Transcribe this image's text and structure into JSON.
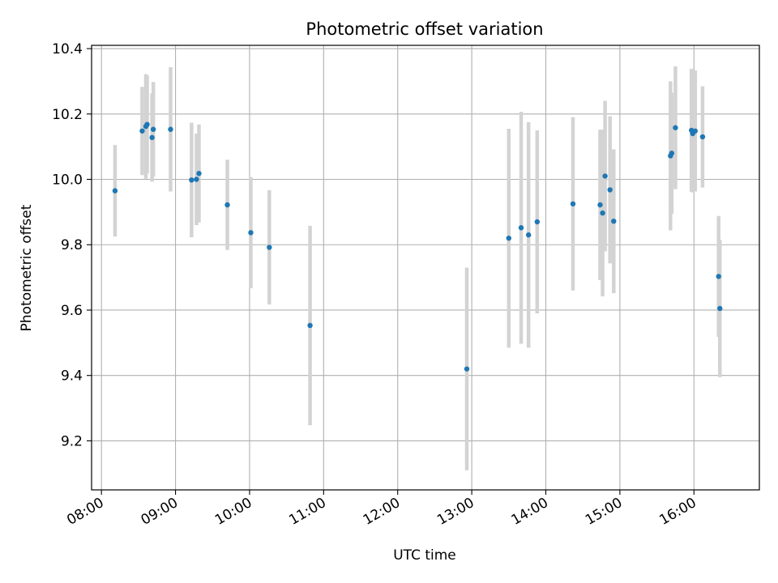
{
  "chart_data": {
    "type": "scatter",
    "title": "Photometric offset variation",
    "xlabel": "UTC time",
    "ylabel": "Photometric offset",
    "x_ticks": [
      "08:00",
      "09:00",
      "10:00",
      "11:00",
      "12:00",
      "13:00",
      "14:00",
      "15:00",
      "16:00"
    ],
    "y_ticks": [
      "9.2",
      "9.4",
      "9.6",
      "9.8",
      "10.0",
      "10.2",
      "10.4"
    ],
    "xlim": [
      "07:52",
      "16:53"
    ],
    "ylim": [
      9.05,
      10.41
    ],
    "grid": true,
    "legend": "none",
    "marker_color": "#1f77b4",
    "errorbar_color": "#d3d3d3",
    "series": [
      {
        "points": [
          {
            "x": "08:11",
            "y": 9.965,
            "err": 0.14
          },
          {
            "x": "08:33",
            "y": 10.148,
            "err": 0.135
          },
          {
            "x": "08:36",
            "y": 10.162,
            "err": 0.16
          },
          {
            "x": "08:37",
            "y": 10.168,
            "err": 0.15
          },
          {
            "x": "08:41",
            "y": 10.128,
            "err": 0.135
          },
          {
            "x": "08:42",
            "y": 10.153,
            "err": 0.145
          },
          {
            "x": "08:56",
            "y": 10.153,
            "err": 0.19
          },
          {
            "x": "09:13",
            "y": 9.998,
            "err": 0.175
          },
          {
            "x": "09:17",
            "y": 10.0,
            "err": 0.14
          },
          {
            "x": "09:19",
            "y": 10.018,
            "err": 0.15
          },
          {
            "x": "09:42",
            "y": 9.922,
            "err": 0.138
          },
          {
            "x": "10:01",
            "y": 9.837,
            "err": 0.17
          },
          {
            "x": "10:16",
            "y": 9.792,
            "err": 0.175
          },
          {
            "x": "10:49",
            "y": 9.553,
            "err": 0.305
          },
          {
            "x": "12:56",
            "y": 9.42,
            "err": 0.31
          },
          {
            "x": "13:30",
            "y": 9.82,
            "err": 0.335
          },
          {
            "x": "13:40",
            "y": 9.852,
            "err": 0.355
          },
          {
            "x": "13:46",
            "y": 9.83,
            "err": 0.345
          },
          {
            "x": "13:53",
            "y": 9.87,
            "err": 0.28
          },
          {
            "x": "14:22",
            "y": 9.925,
            "err": 0.265
          },
          {
            "x": "14:44",
            "y": 9.922,
            "err": 0.23
          },
          {
            "x": "14:46",
            "y": 9.897,
            "err": 0.255
          },
          {
            "x": "14:48",
            "y": 10.01,
            "err": 0.23
          },
          {
            "x": "14:52",
            "y": 9.968,
            "err": 0.225
          },
          {
            "x": "14:55",
            "y": 9.872,
            "err": 0.22
          },
          {
            "x": "15:41",
            "y": 10.072,
            "err": 0.228
          },
          {
            "x": "15:42",
            "y": 10.08,
            "err": 0.185
          },
          {
            "x": "15:45",
            "y": 10.158,
            "err": 0.188
          },
          {
            "x": "15:58",
            "y": 10.15,
            "err": 0.188
          },
          {
            "x": "15:59",
            "y": 10.14,
            "err": 0.18
          },
          {
            "x": "16:01",
            "y": 10.148,
            "err": 0.185
          },
          {
            "x": "16:07",
            "y": 10.13,
            "err": 0.155
          },
          {
            "x": "16:20",
            "y": 9.703,
            "err": 0.185
          },
          {
            "x": "16:21",
            "y": 9.605,
            "err": 0.21
          }
        ]
      }
    ]
  }
}
